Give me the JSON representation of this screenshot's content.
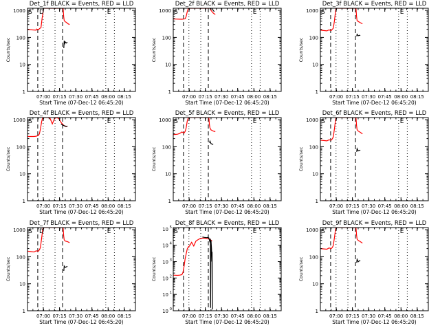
{
  "colors": {
    "events": "#000000",
    "lld": "#ff0000",
    "axis": "#000000",
    "background": "#ffffff"
  },
  "chart_data": [
    {
      "type": "line",
      "title": "Det_1f BLACK = Events, RED = LLD",
      "xlabel": "Start Time (07-Dec-12 06:45:20)",
      "ylabel": "Counts/sec",
      "y_scale": "log",
      "ylim": [
        1,
        1200
      ],
      "xlim_minutes": [
        0,
        100
      ],
      "x_tick_labels": [
        "07:00",
        "07:15",
        "07:30",
        "07:45",
        "08:00",
        "08:15"
      ],
      "y_tick_labels": [
        "1",
        "10",
        "100",
        "1000"
      ],
      "markers": [
        "S",
        "D",
        "E"
      ],
      "grid": false,
      "series": [
        {
          "name": "LLD",
          "x": [
            0,
            8,
            8.5,
            10,
            11,
            12.5,
            13.5,
            14.5,
            15,
            15.5,
            16,
            17,
            33,
            33.5,
            34,
            35,
            36,
            37.5,
            39
          ],
          "y": [
            195,
            185,
            205,
            190,
            210,
            230,
            500,
            900,
            1200,
            1200,
            1200,
            1200,
            1200,
            600,
            420,
            380,
            360,
            320,
            300
          ]
        },
        {
          "name": "Events",
          "x": [
            33.6,
            34,
            34.5,
            35,
            36,
            37
          ],
          "y": [
            40,
            75,
            60,
            68,
            62,
            66
          ]
        }
      ]
    },
    {
      "type": "line",
      "title": "Det_2f BLACK = Events, RED = LLD",
      "xlabel": "Start Time (07-Dec-12 06:45:20)",
      "ylabel": "Counts/sec",
      "y_scale": "log",
      "ylim": [
        1,
        1200
      ],
      "xlim_minutes": [
        0,
        100
      ],
      "x_tick_labels": [
        "07:00",
        "07:15",
        "07:30",
        "07:45",
        "08:00",
        "08:15"
      ],
      "y_tick_labels": [
        "1",
        "10",
        "100",
        "1000"
      ],
      "markers": [
        "S",
        "E"
      ],
      "grid": false,
      "series": [
        {
          "name": "LLD",
          "x": [
            0,
            8,
            11,
            12,
            13,
            14,
            15,
            16,
            17,
            33,
            34,
            35,
            37,
            39
          ],
          "y": [
            480,
            470,
            490,
            600,
            900,
            1200,
            1200,
            1200,
            1200,
            1200,
            1300,
            1000,
            800,
            700
          ]
        },
        {
          "name": "Events",
          "x": [
            34,
            35,
            36,
            37,
            38
          ],
          "y": [
            1100,
            1400,
            1200,
            1000,
            900
          ]
        }
      ]
    },
    {
      "type": "line",
      "title": "Det_3f BLACK = Events, RED = LLD",
      "xlabel": "Start Time (07-Dec-12 06:45:20)",
      "ylabel": "Counts/sec",
      "y_scale": "log",
      "ylim": [
        1,
        1200
      ],
      "xlim_minutes": [
        0,
        100
      ],
      "x_tick_labels": [
        "07:00",
        "07:15",
        "07:30",
        "07:45",
        "08:00",
        "08:15"
      ],
      "y_tick_labels": [
        "1",
        "10",
        "100",
        "1000"
      ],
      "markers": [
        "S",
        "E"
      ],
      "grid": false,
      "series": [
        {
          "name": "LLD",
          "x": [
            0,
            6,
            8,
            10,
            11,
            12,
            13,
            14,
            14.5,
            15,
            33,
            33.5,
            34,
            35,
            37,
            39
          ],
          "y": [
            185,
            175,
            190,
            180,
            200,
            220,
            400,
            900,
            1200,
            1200,
            1200,
            600,
            420,
            390,
            350,
            320
          ]
        },
        {
          "name": "Events",
          "x": [
            33.6,
            34,
            35,
            36,
            37
          ],
          "y": [
            110,
            130,
            115,
            120,
            118
          ]
        }
      ]
    },
    {
      "type": "line",
      "title": "Det_4f BLACK = Events, RED = LLD",
      "xlabel": "Start Time (07-Dec-12 06:45:20)",
      "ylabel": "Counts/sec",
      "y_scale": "log",
      "ylim": [
        1,
        1200
      ],
      "xlim_minutes": [
        0,
        100
      ],
      "x_tick_labels": [
        "07:00",
        "07:15",
        "07:30",
        "07:45",
        "08:00",
        "08:15"
      ],
      "y_tick_labels": [
        "1",
        "10",
        "100",
        "1000"
      ],
      "markers": [
        "S",
        "E"
      ],
      "grid": false,
      "series": [
        {
          "name": "LLD",
          "x": [
            0,
            6,
            8,
            10,
            11,
            12,
            13,
            14,
            15,
            17,
            19,
            21,
            23,
            25,
            27,
            29,
            31,
            33,
            35,
            37
          ],
          "y": [
            240,
            240,
            245,
            260,
            300,
            450,
            800,
            1200,
            1200,
            1200,
            1200,
            1100,
            700,
            1100,
            1200,
            1100,
            800,
            650,
            560,
            580
          ]
        },
        {
          "name": "Events",
          "x": [
            31,
            33,
            35,
            37
          ],
          "y": [
            700,
            620,
            580,
            560
          ]
        }
      ]
    },
    {
      "type": "line",
      "title": "Det_5f BLACK = Events, RED = LLD",
      "xlabel": "Start Time (07-Dec-12 06:45:20)",
      "ylabel": "Counts/sec",
      "y_scale": "log",
      "ylim": [
        1,
        1200
      ],
      "xlim_minutes": [
        0,
        100
      ],
      "x_tick_labels": [
        "07:00",
        "07:15",
        "07:30",
        "07:45",
        "08:00",
        "08:15"
      ],
      "y_tick_labels": [
        "1",
        "10",
        "100",
        "1000"
      ],
      "markers": [
        "S",
        "E"
      ],
      "grid": false,
      "series": [
        {
          "name": "LLD",
          "x": [
            0,
            4,
            6,
            8,
            10,
            11,
            12,
            13,
            14,
            15,
            33,
            33.5,
            34,
            35,
            37,
            39
          ],
          "y": [
            280,
            290,
            310,
            350,
            320,
            370,
            500,
            900,
            1200,
            1200,
            1200,
            650,
            500,
            420,
            380,
            360
          ]
        },
        {
          "name": "Events",
          "x": [
            33.6,
            34,
            35,
            36,
            37
          ],
          "y": [
            140,
            160,
            130,
            125,
            120
          ]
        }
      ]
    },
    {
      "type": "line",
      "title": "Det_6f BLACK = Events, RED = LLD",
      "xlabel": "Start Time (07-Dec-12 06:45:20)",
      "ylabel": "Counts/sec",
      "y_scale": "log",
      "ylim": [
        1,
        1200
      ],
      "xlim_minutes": [
        0,
        100
      ],
      "x_tick_labels": [
        "07:00",
        "07:15",
        "07:30",
        "07:45",
        "08:00",
        "08:15"
      ],
      "y_tick_labels": [
        "1",
        "10",
        "100",
        "1000"
      ],
      "markers": [
        "S",
        "E"
      ],
      "grid": false,
      "series": [
        {
          "name": "LLD",
          "x": [
            0,
            6,
            8,
            10,
            11,
            12,
            13,
            14,
            14.5,
            15,
            33,
            33.5,
            34,
            35,
            37,
            39
          ],
          "y": [
            175,
            165,
            180,
            175,
            195,
            230,
            450,
            950,
            1200,
            1200,
            1200,
            620,
            430,
            380,
            340,
            300
          ]
        },
        {
          "name": "Events",
          "x": [
            33.6,
            34,
            35,
            36,
            37
          ],
          "y": [
            65,
            85,
            70,
            72,
            75
          ]
        }
      ]
    },
    {
      "type": "line",
      "title": "Det_7f BLACK = Events, RED = LLD",
      "xlabel": "Start Time (07-Dec-12 06:45:20)",
      "ylabel": "Counts/sec",
      "y_scale": "log",
      "ylim": [
        1,
        1200
      ],
      "xlim_minutes": [
        0,
        100
      ],
      "x_tick_labels": [
        "07:00",
        "07:15",
        "07:30",
        "07:45",
        "08:00",
        "08:15"
      ],
      "y_tick_labels": [
        "1",
        "10",
        "100",
        "1000"
      ],
      "markers": [
        "S",
        "D",
        "E"
      ],
      "grid": false,
      "series": [
        {
          "name": "LLD",
          "x": [
            0,
            6,
            8,
            10,
            11,
            12,
            13,
            14,
            14.5,
            15,
            33,
            33.5,
            34,
            35,
            37,
            39
          ],
          "y": [
            160,
            150,
            165,
            160,
            180,
            220,
            450,
            950,
            1200,
            1200,
            1200,
            600,
            420,
            380,
            360,
            330
          ]
        },
        {
          "name": "Events",
          "x": [
            33.6,
            34,
            35,
            36,
            37
          ],
          "y": [
            30,
            45,
            40,
            42,
            44
          ]
        }
      ]
    },
    {
      "type": "line",
      "title": "Det_8f BLACK = Events, RED = LLD",
      "xlabel": "Start Time (07-Dec-12 06:45:20)",
      "ylabel": "Counts/sec",
      "y_scale": "log",
      "ylim": [
        1,
        120000
      ],
      "xlim_minutes": [
        0,
        100
      ],
      "x_tick_labels": [
        "07:00",
        "07:15",
        "07:30",
        "07:45",
        "08:00",
        "08:15"
      ],
      "y_tick_labels": [
        "10^0",
        "10^1",
        "10^2",
        "10^3",
        "10^4",
        "10^5"
      ],
      "markers": [
        "S",
        "E"
      ],
      "grid": false,
      "series": [
        {
          "name": "LLD",
          "x": [
            0,
            4,
            6,
            8,
            9,
            10,
            11,
            12,
            13,
            14,
            15,
            17,
            19,
            21,
            23,
            25,
            27,
            29,
            31,
            33,
            34,
            35,
            36
          ],
          "y": [
            150,
            145,
            150,
            160,
            220,
            500,
            1500,
            3000,
            6000,
            8000,
            9000,
            15000,
            9000,
            18000,
            22000,
            26000,
            27000,
            27000,
            26000,
            24000,
            23000,
            20000,
            18000
          ]
        },
        {
          "name": "Events",
          "x": [
            27,
            29,
            31,
            32,
            33,
            34,
            34.4,
            34.6,
            35,
            35.5,
            35.8,
            36,
            36.4
          ],
          "y": [
            32000,
            30000,
            29000,
            30000,
            28000,
            15000,
            25000,
            1.5,
            20000,
            6000,
            1000,
            4000,
            1.2
          ]
        }
      ]
    },
    {
      "type": "line",
      "title": "Det_9f BLACK = Events, RED = LLD",
      "xlabel": "Start Time (07-Dec-12 06:45:20)",
      "ylabel": "Counts/sec",
      "y_scale": "log",
      "ylim": [
        1,
        1200
      ],
      "xlim_minutes": [
        0,
        100
      ],
      "x_tick_labels": [
        "07:00",
        "07:15",
        "07:30",
        "07:45",
        "08:00",
        "08:15"
      ],
      "y_tick_labels": [
        "1",
        "10",
        "100",
        "1000"
      ],
      "markers": [
        "S",
        "E"
      ],
      "grid": false,
      "series": [
        {
          "name": "LLD",
          "x": [
            0,
            6,
            8,
            10,
            11,
            12,
            13,
            14,
            14.5,
            15,
            33,
            33.5,
            34,
            35,
            37,
            39
          ],
          "y": [
            200,
            190,
            210,
            200,
            220,
            260,
            500,
            1000,
            1200,
            1200,
            1200,
            640,
            450,
            400,
            360,
            320
          ]
        },
        {
          "name": "Events",
          "x": [
            33.6,
            34,
            35,
            36,
            37
          ],
          "y": [
            60,
            80,
            65,
            70,
            72
          ]
        }
      ]
    }
  ]
}
